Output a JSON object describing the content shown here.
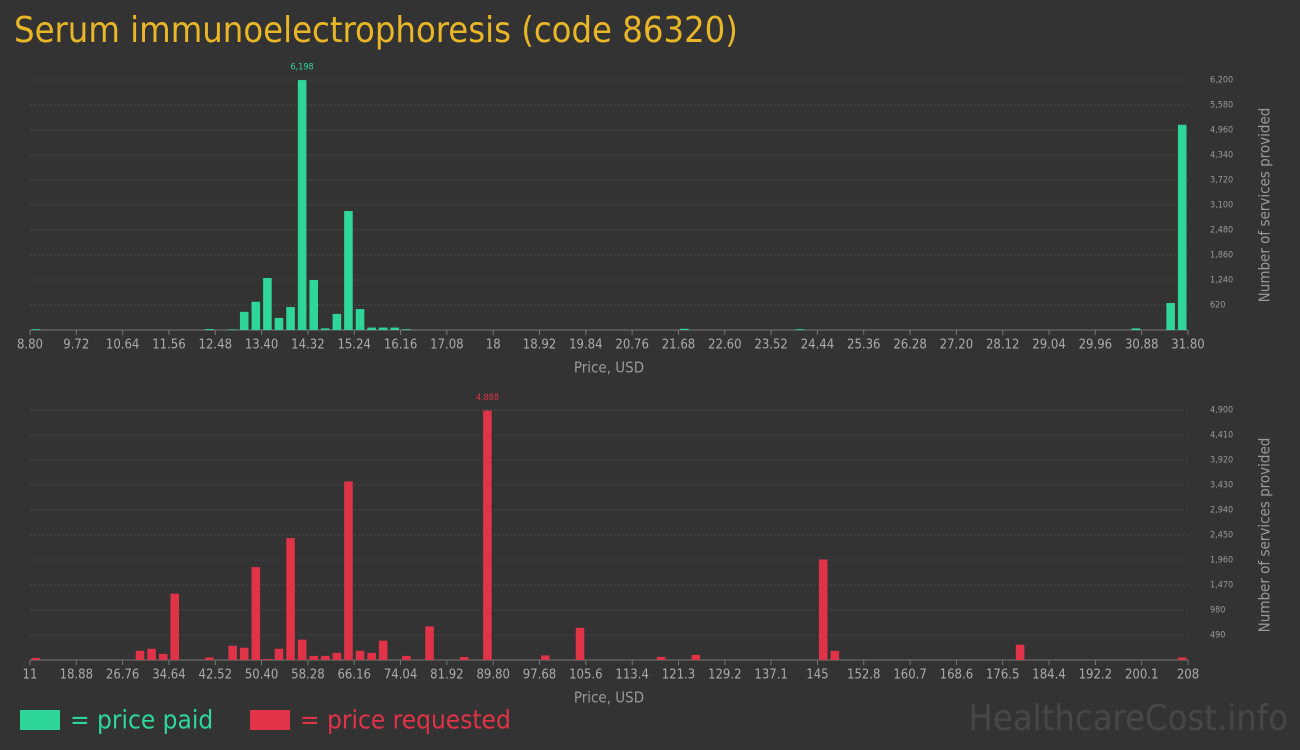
{
  "title": "Serum immunoelectrophoresis (code 86320)",
  "watermark": "HealthcareCost.info",
  "chart_data": [
    {
      "type": "histogram",
      "xlabel": "Price, USD",
      "ylabel": "Number of services provided",
      "grid": true,
      "xlim": [
        8.8,
        31.8
      ],
      "ylim": [
        0,
        6200
      ],
      "xticks": [
        {
          "value": 8.8,
          "label": "8.80"
        },
        9.72,
        10.64,
        11.56,
        12.48,
        {
          "value": 13.4,
          "label": "13.40"
        },
        14.32,
        15.24,
        16.16,
        17.08,
        18,
        18.92,
        19.84,
        20.76,
        21.68,
        {
          "value": 22.6,
          "label": "22.60"
        },
        23.52,
        24.44,
        25.36,
        26.28,
        {
          "value": 27.2,
          "label": "27.20"
        },
        28.12,
        29.04,
        29.96,
        30.88,
        {
          "value": 31.8,
          "label": "31.80"
        }
      ],
      "yticks": [
        {
          "value": 620,
          "label": "620"
        },
        {
          "value": 1240,
          "label": "1,240"
        },
        {
          "value": 1860,
          "label": "1,860"
        },
        {
          "value": 2480,
          "label": "2,480"
        },
        {
          "value": 3100,
          "label": "3,100"
        },
        {
          "value": 3720,
          "label": "3,720"
        },
        {
          "value": 4340,
          "label": "4,340"
        },
        {
          "value": 4960,
          "label": "4,960"
        },
        {
          "value": 5580,
          "label": "5,580"
        },
        {
          "value": 6200,
          "label": "6,200"
        }
      ],
      "bins": [
        8.8,
        9.03,
        9.26,
        9.49,
        9.72,
        9.95,
        10.18,
        10.41,
        10.64,
        10.87,
        11.1,
        11.33,
        11.56,
        11.79,
        12.02,
        12.25,
        12.48,
        12.71,
        12.94,
        13.17,
        13.4,
        13.63,
        13.86,
        14.09,
        14.32,
        14.55,
        14.78,
        15.01,
        15.24,
        15.47,
        15.7,
        15.93,
        16.16,
        16.39,
        16.62,
        16.85,
        17.08,
        17.31,
        17.54,
        17.77,
        18.0,
        18.23,
        18.46,
        18.69,
        18.92,
        19.15,
        19.38,
        19.61,
        19.84,
        20.07,
        20.3,
        20.53,
        20.76,
        20.99,
        21.22,
        21.45,
        21.68,
        21.91,
        22.14,
        22.37,
        22.6,
        22.83,
        23.06,
        23.29,
        23.52,
        23.75,
        23.98,
        24.21,
        24.44,
        24.67,
        24.9,
        25.13,
        25.36,
        25.59,
        25.82,
        26.05,
        26.28,
        26.51,
        26.74,
        26.97,
        27.2,
        27.43,
        27.66,
        27.89,
        28.12,
        28.35,
        28.58,
        28.81,
        29.04,
        29.27,
        29.5,
        29.73,
        29.96,
        30.19,
        30.42,
        30.65,
        30.88,
        31.11,
        31.34,
        31.57,
        31.8
      ],
      "series": [
        {
          "name": "= price paid",
          "color": "#2ed69c",
          "values": [
            20,
            0,
            0,
            0,
            0,
            0,
            0,
            0,
            0,
            0,
            0,
            0,
            0,
            0,
            0,
            25,
            0,
            15,
            450,
            700,
            1290,
            300,
            570,
            6198,
            1240,
            40,
            400,
            2950,
            520,
            60,
            60,
            60,
            20,
            0,
            0,
            0,
            0,
            0,
            0,
            0,
            0,
            0,
            0,
            0,
            0,
            0,
            0,
            0,
            0,
            0,
            0,
            0,
            0,
            0,
            0,
            0,
            30,
            0,
            0,
            0,
            0,
            0,
            0,
            0,
            0,
            0,
            20,
            0,
            0,
            0,
            0,
            0,
            0,
            0,
            0,
            0,
            0,
            0,
            0,
            0,
            0,
            0,
            0,
            0,
            0,
            0,
            0,
            0,
            0,
            0,
            0,
            0,
            0,
            0,
            0,
            40,
            0,
            0,
            670,
            5090
          ],
          "value_labels": [
            null,
            null,
            null,
            null,
            null,
            null,
            null,
            null,
            null,
            null,
            null,
            null,
            null,
            null,
            null,
            null,
            null,
            null,
            null,
            null,
            null,
            null,
            null,
            "6,198",
            null,
            null,
            null,
            null,
            null,
            null,
            null,
            null,
            null,
            null,
            null,
            null,
            null,
            null,
            null,
            null,
            null,
            null,
            null,
            null,
            null,
            null,
            null,
            null,
            null,
            null,
            null,
            null,
            null,
            null,
            null,
            null,
            null,
            null,
            null,
            null,
            null,
            null,
            null,
            null,
            null,
            null,
            null,
            null,
            null,
            null,
            null,
            null,
            null,
            null,
            null,
            null,
            null,
            null,
            null,
            null,
            null,
            null,
            null,
            null,
            null,
            null,
            null,
            null,
            null,
            null,
            null,
            null,
            null,
            null,
            null,
            null,
            null,
            null,
            null,
            null
          ]
        }
      ]
    },
    {
      "type": "histogram",
      "xlabel": "Price, USD",
      "ylabel": "Number of services provided",
      "grid": true,
      "xlim": [
        11,
        208
      ],
      "ylim": [
        0,
        4900
      ],
      "xticks": [
        11,
        18.88,
        26.76,
        34.64,
        42.52,
        {
          "value": 50.4,
          "label": "50.40"
        },
        58.28,
        66.16,
        74.04,
        81.92,
        {
          "value": 89.8,
          "label": "89.80"
        },
        97.68,
        {
          "value": 105.56,
          "label": "105.6"
        },
        {
          "value": 113.44,
          "label": "113.4"
        },
        {
          "value": 121.32,
          "label": "121.3"
        },
        129.2,
        {
          "value": 137.08,
          "label": "137.1"
        },
        {
          "value": 144.96,
          "label": "145"
        },
        {
          "value": 152.84,
          "label": "152.8"
        },
        {
          "value": 160.72,
          "label": "160.7"
        },
        168.6,
        {
          "value": 176.48,
          "label": "176.5"
        },
        {
          "value": 184.36,
          "label": "184.4"
        },
        {
          "value": 192.24,
          "label": "192.2"
        },
        {
          "value": 200.12,
          "label": "200.1"
        },
        208
      ],
      "yticks": [
        490,
        980,
        {
          "value": 1470,
          "label": "1,470"
        },
        {
          "value": 1960,
          "label": "1,960"
        },
        {
          "value": 2450,
          "label": "2,450"
        },
        {
          "value": 2940,
          "label": "2,940"
        },
        {
          "value": 3430,
          "label": "3,430"
        },
        {
          "value": 3920,
          "label": "3,920"
        },
        {
          "value": 4410,
          "label": "4,410"
        },
        {
          "value": 4900,
          "label": "4,900"
        }
      ],
      "bins": [
        11,
        12.97,
        14.94,
        16.91,
        18.88,
        20.85,
        22.82,
        24.79,
        26.76,
        28.73,
        30.7,
        32.67,
        34.64,
        36.61,
        38.58,
        40.55,
        42.52,
        44.49,
        46.46,
        48.43,
        50.4,
        52.37,
        54.34,
        56.31,
        58.28,
        60.25,
        62.22,
        64.19,
        66.16,
        68.13,
        70.1,
        72.07,
        74.04,
        76.01,
        77.98,
        79.95,
        81.92,
        83.89,
        85.86,
        87.83,
        89.8,
        91.77,
        93.74,
        95.71,
        97.68,
        99.65,
        101.62,
        103.59,
        105.56,
        107.53,
        109.5,
        111.47,
        113.44,
        115.41,
        117.38,
        119.35,
        121.32,
        123.29,
        125.26,
        127.23,
        129.2,
        131.17,
        133.14,
        135.11,
        137.08,
        139.05,
        141.02,
        142.99,
        144.96,
        146.93,
        148.9,
        150.87,
        152.84,
        154.81,
        156.78,
        158.75,
        160.72,
        162.69,
        164.66,
        166.63,
        168.6,
        170.57,
        172.54,
        174.51,
        176.48,
        178.45,
        180.42,
        182.39,
        184.36,
        186.33,
        188.3,
        190.27,
        192.24,
        194.21,
        196.18,
        198.15,
        200.12,
        202.09,
        204.06,
        206.03,
        208
      ],
      "series": [
        {
          "name": "= price requested",
          "color": "#e03347",
          "values": [
            40,
            0,
            0,
            0,
            0,
            0,
            0,
            0,
            0,
            180,
            220,
            120,
            1300,
            0,
            0,
            50,
            0,
            280,
            240,
            1820,
            20,
            220,
            2390,
            400,
            80,
            80,
            140,
            3500,
            180,
            140,
            380,
            0,
            80,
            0,
            660,
            0,
            0,
            60,
            0,
            4888,
            0,
            0,
            0,
            0,
            90,
            0,
            0,
            630,
            0,
            0,
            0,
            0,
            0,
            0,
            60,
            0,
            0,
            100,
            0,
            0,
            0,
            0,
            0,
            0,
            0,
            0,
            0,
            0,
            1970,
            180,
            0,
            0,
            0,
            0,
            0,
            0,
            0,
            0,
            0,
            0,
            0,
            0,
            0,
            0,
            0,
            300,
            0,
            0,
            0,
            0,
            0,
            0,
            0,
            0,
            0,
            0,
            0,
            0,
            0,
            50
          ],
          "value_labels": [
            null,
            null,
            null,
            null,
            null,
            null,
            null,
            null,
            null,
            null,
            null,
            null,
            null,
            null,
            null,
            null,
            null,
            null,
            null,
            null,
            null,
            null,
            null,
            null,
            null,
            null,
            null,
            null,
            null,
            null,
            null,
            null,
            null,
            null,
            null,
            null,
            null,
            null,
            null,
            "4,888",
            null,
            null,
            null,
            null,
            null,
            null,
            null,
            null,
            null,
            null,
            null,
            null,
            null,
            null,
            null,
            null,
            null,
            null,
            null,
            null,
            null,
            null,
            null,
            null,
            null,
            null,
            null,
            null,
            null,
            null,
            null,
            null,
            null,
            null,
            null,
            null,
            null,
            null,
            null,
            null,
            null,
            null,
            null,
            null,
            null,
            null,
            null,
            null,
            null,
            null,
            null,
            null,
            null,
            null,
            null,
            null,
            null,
            null,
            null,
            null
          ]
        }
      ]
    }
  ]
}
